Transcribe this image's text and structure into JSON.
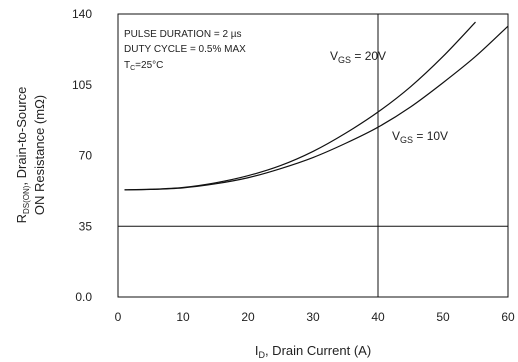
{
  "chart_data": {
    "type": "line",
    "xlabel_main": "I",
    "xlabel_sub": "D",
    "xlabel_rest": ", Drain Current (A)",
    "ylabel_line1_main": "R",
    "ylabel_line1_sub": "DS(ON)",
    "ylabel_line1_rest": ", Drain-to-Source",
    "ylabel_line2": "ON Resistance (mΩ)",
    "xlim": [
      0,
      60
    ],
    "ylim": [
      0,
      140
    ],
    "x_ticks": [
      "0",
      "10",
      "20",
      "30",
      "40",
      "50",
      "60"
    ],
    "x_tick_values": [
      0,
      10,
      20,
      30,
      40,
      50,
      60
    ],
    "y_ticks": [
      "0.0",
      "35",
      "70",
      "105",
      "140"
    ],
    "y_tick_values": [
      0,
      35,
      70,
      105,
      140
    ],
    "reference_lines": {
      "x": 40,
      "y": 35
    },
    "annotations": {
      "line1": "PULSE DURATION = 2 µs",
      "line2": "DUTY CYCLE = 0.5% MAX",
      "line3_main": "T",
      "line3_sub": "C",
      "line3_rest": "=25°C"
    },
    "series": [
      {
        "name": "V_GS = 20V",
        "label_main": "V",
        "label_sub": "GS",
        "label_rest": " = 20V",
        "x": [
          1,
          5,
          10,
          15,
          20,
          25,
          30,
          35,
          40,
          45,
          50,
          55
        ],
        "y": [
          53,
          53.3,
          54.2,
          56.5,
          60,
          65,
          72,
          81,
          91.5,
          104,
          119,
          136
        ]
      },
      {
        "name": "V_GS = 10V",
        "label_main": "V",
        "label_sub": "GS",
        "label_rest": " = 10V",
        "x": [
          1,
          5,
          10,
          15,
          20,
          25,
          30,
          35,
          40,
          45,
          50,
          55,
          60
        ],
        "y": [
          53,
          53.2,
          54,
          56,
          59,
          63.5,
          69,
          76,
          84,
          94,
          106,
          119,
          134
        ]
      }
    ]
  }
}
